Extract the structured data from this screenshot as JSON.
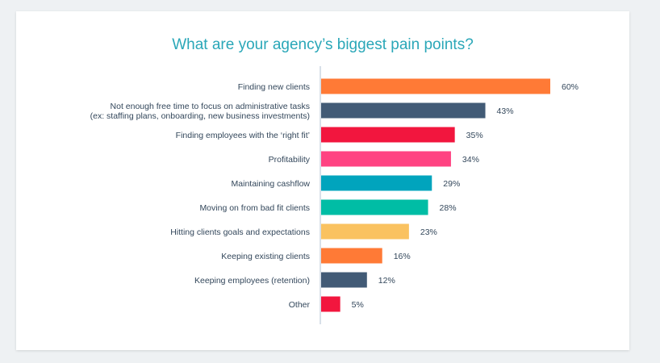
{
  "chart_data": {
    "type": "bar",
    "orientation": "horizontal",
    "title": "What are your agency’s biggest pain points?",
    "categories": [
      [
        "Finding new clients"
      ],
      [
        "Not enough free time to focus on administrative tasks",
        "(ex: staffing plans, onboarding, new business investments)"
      ],
      [
        "Finding employees with the ‘right fit’"
      ],
      [
        "Profitability"
      ],
      [
        "Maintaining cashflow"
      ],
      [
        "Moving on from bad fit clients"
      ],
      [
        "Hitting clients goals and expectations"
      ],
      [
        "Keeping existing clients"
      ],
      [
        "Keeping employees (retention)"
      ],
      [
        "Other"
      ]
    ],
    "values": [
      60,
      43,
      35,
      34,
      29,
      28,
      23,
      16,
      12,
      5
    ],
    "value_labels": [
      "60%",
      "43%",
      "35%",
      "34%",
      "29%",
      "28%",
      "23%",
      "16%",
      "12%",
      "5%"
    ],
    "colors": [
      "#ff7a36",
      "#425b76",
      "#f2163e",
      "#ff4382",
      "#01a4bd",
      "#00bda5",
      "#fac260",
      "#ff7a36",
      "#425b76",
      "#f2163e"
    ],
    "xlim": [
      0,
      60
    ],
    "grid": false,
    "legend": "none"
  }
}
